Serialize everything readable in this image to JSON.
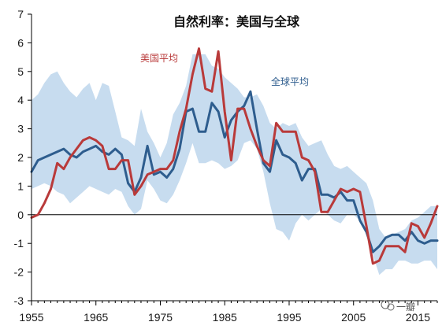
{
  "chart_data": {
    "type": "line",
    "title": "自然利率：美国与全球",
    "xlabel": "",
    "ylabel": "",
    "xlim": [
      1955,
      2018
    ],
    "ylim": [
      -3,
      7
    ],
    "xticks": [
      1955,
      1965,
      1975,
      1985,
      1995,
      2005,
      2015
    ],
    "xtick_labels": [
      "1955",
      "1965",
      "1975",
      "1985",
      "1995",
      "2005",
      "2015"
    ],
    "yticks": [
      -3,
      -2,
      -1,
      0,
      1,
      2,
      3,
      4,
      5,
      6,
      7
    ],
    "ytick_labels": [
      "-3",
      "-2",
      "-1",
      "0",
      "1",
      "2",
      "3",
      "4",
      "5",
      "6",
      "7"
    ],
    "zero_line": true,
    "grid": false,
    "x": [
      1955,
      1956,
      1957,
      1958,
      1959,
      1960,
      1961,
      1962,
      1963,
      1964,
      1965,
      1966,
      1967,
      1968,
      1969,
      1970,
      1971,
      1972,
      1973,
      1974,
      1975,
      1976,
      1977,
      1978,
      1979,
      1980,
      1981,
      1982,
      1983,
      1984,
      1985,
      1986,
      1987,
      1988,
      1989,
      1990,
      1991,
      1992,
      1993,
      1994,
      1995,
      1996,
      1997,
      1998,
      1999,
      2000,
      2001,
      2002,
      2003,
      2004,
      2005,
      2006,
      2007,
      2008,
      2009,
      2010,
      2011,
      2012,
      2013,
      2014,
      2015,
      2016,
      2017,
      2018
    ],
    "band": {
      "upper": [
        4.0,
        4.2,
        4.6,
        4.9,
        5.0,
        4.6,
        4.3,
        4.1,
        4.4,
        4.6,
        4.0,
        4.6,
        4.5,
        3.6,
        2.7,
        2.6,
        2.4,
        3.7,
        2.9,
        2.5,
        2.0,
        2.5,
        3.5,
        3.9,
        4.5,
        5.6,
        5.6,
        5.6,
        5.2,
        5.1,
        4.8,
        4.6,
        4.4,
        4.1,
        4.1,
        4.2,
        3.8,
        3.2,
        3.0,
        3.2,
        3.1,
        3.2,
        2.7,
        2.4,
        2.5,
        2.6,
        2.1,
        1.7,
        1.6,
        1.7,
        1.5,
        1.3,
        1.1,
        0.5,
        -0.5,
        -0.8,
        -0.7,
        -0.6,
        -0.5,
        -0.2,
        -0.1,
        0.1,
        0.3,
        0.3
      ],
      "lower": [
        0.9,
        1.0,
        1.1,
        1.0,
        0.8,
        0.7,
        0.4,
        0.6,
        0.8,
        1.0,
        0.9,
        0.8,
        0.7,
        0.9,
        0.8,
        0.3,
        0.0,
        0.2,
        1.2,
        0.9,
        0.5,
        0.4,
        0.7,
        1.2,
        1.8,
        2.5,
        1.8,
        1.8,
        1.9,
        1.8,
        1.6,
        1.7,
        1.9,
        2.5,
        2.6,
        2.3,
        1.5,
        0.4,
        -0.5,
        -0.6,
        -0.9,
        -0.3,
        0.0,
        -0.2,
        0.0,
        0.2,
        0.0,
        -0.2,
        -0.3,
        0.0,
        0.0,
        -0.2,
        -0.5,
        -1.4,
        -2.1,
        -1.9,
        -1.9,
        -1.6,
        -1.6,
        -1.7,
        -1.7,
        -1.6,
        -1.6,
        -1.9
      ]
    },
    "series": [
      {
        "name": "全球平均",
        "color": "#2e5d8e",
        "values": [
          1.5,
          1.9,
          2.0,
          2.1,
          2.2,
          2.3,
          2.1,
          2.0,
          2.2,
          2.3,
          2.4,
          2.2,
          2.1,
          2.3,
          2.1,
          1.1,
          0.8,
          1.3,
          2.4,
          1.4,
          1.5,
          1.3,
          1.6,
          2.3,
          3.6,
          3.7,
          2.9,
          2.9,
          3.9,
          3.6,
          2.7,
          3.3,
          3.6,
          3.8,
          4.3,
          3.0,
          1.8,
          1.5,
          2.6,
          2.1,
          2.0,
          1.8,
          1.2,
          1.6,
          1.6,
          0.7,
          0.7,
          0.6,
          0.8,
          0.5,
          0.5,
          -0.2,
          -0.6,
          -1.3,
          -1.1,
          -0.8,
          -0.7,
          -0.7,
          -0.9,
          -0.6,
          -0.9,
          -1.0,
          -0.9,
          -0.9
        ]
      },
      {
        "name": "美国平均",
        "color": "#b93a3a",
        "values": [
          -0.1,
          0.0,
          0.4,
          0.9,
          1.8,
          1.6,
          2.0,
          2.3,
          2.6,
          2.7,
          2.6,
          2.4,
          1.6,
          1.6,
          1.9,
          1.9,
          0.7,
          1.0,
          1.4,
          1.5,
          1.6,
          1.6,
          1.9,
          2.9,
          3.7,
          4.9,
          5.8,
          4.4,
          4.3,
          5.7,
          3.6,
          1.9,
          3.7,
          3.7,
          3.0,
          2.4,
          1.9,
          1.7,
          3.2,
          2.9,
          2.9,
          2.9,
          2.0,
          1.9,
          1.5,
          0.1,
          0.1,
          0.5,
          0.9,
          0.8,
          0.9,
          0.8,
          -0.4,
          -1.7,
          -1.6,
          -1.1,
          -1.1,
          -1.1,
          -1.3,
          -0.3,
          -0.4,
          -0.8,
          -0.3,
          0.3
        ]
      }
    ]
  },
  "watermark": {
    "text": "一瓣"
  }
}
